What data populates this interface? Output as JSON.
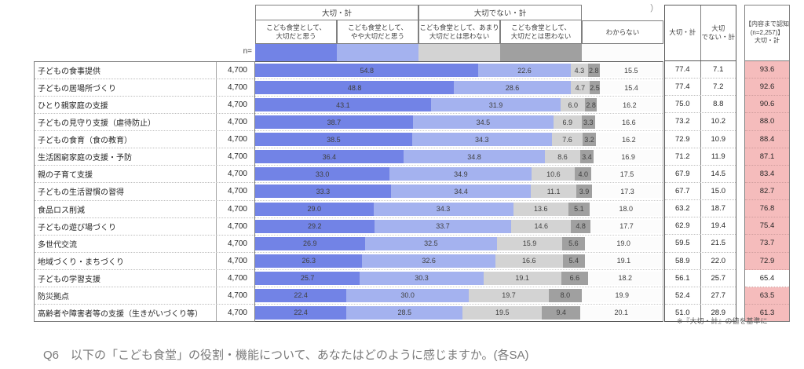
{
  "header": {
    "n_label": "n=",
    "percent_mark": "）",
    "group_important": "大切・計",
    "group_not_important": "大切でない・計",
    "columns": [
      {
        "label": "こども食堂として、\n大切だと思う"
      },
      {
        "label": "こども食堂として、\nやや大切だと思う"
      },
      {
        "label": "こども食堂として、あまり\n大切だとは思わない"
      },
      {
        "label": "こども食堂として、\n大切だとは思わない"
      },
      {
        "label": "わからない"
      }
    ]
  },
  "summary": {
    "important_header": "大切・計",
    "not_important_header": "大切\nでない・計",
    "aware_header": "【内容まで認知\n(n=2,257)】\n大切・計"
  },
  "footnote": "※『大切・計』の値を基準に",
  "question": "Q6　以下の「こども食堂」の役割・機能について、あなたはどのように感じますか。(各SA)",
  "colors": {
    "very_important": "#7283e6",
    "somewhat_important": "#a4b2ef",
    "not_very_important": "#d3d3d3",
    "not_important": "#a0a0a0",
    "dont_know": "#fcfcfc",
    "aware_pink": "#f5bcbc",
    "aware_white": "#ffffff"
  },
  "chart_data": {
    "type": "bar",
    "stacked": true,
    "orientation": "horizontal",
    "unit": "%",
    "xlim": [
      0,
      100
    ],
    "legend_position": "top",
    "series_names": [
      "こども食堂として、大切だと思う",
      "こども食堂として、やや大切だと思う",
      "こども食堂として、あまり大切だとは思わない",
      "こども食堂として、大切だとは思わない",
      "わからない"
    ],
    "rows": [
      {
        "label": "子どもの食事提供",
        "n": "4,700",
        "values": [
          54.8,
          22.6,
          4.3,
          2.8,
          15.5
        ],
        "important_total": 77.4,
        "not_important_total": 7.1,
        "aware_important": 93.6,
        "aware_pink": true
      },
      {
        "label": "子どもの居場所づくり",
        "n": "4,700",
        "values": [
          48.8,
          28.6,
          4.7,
          2.5,
          15.4
        ],
        "important_total": 77.4,
        "not_important_total": 7.2,
        "aware_important": 92.6,
        "aware_pink": true
      },
      {
        "label": "ひとり親家庭の支援",
        "n": "4,700",
        "values": [
          43.1,
          31.9,
          6.0,
          2.8,
          16.2
        ],
        "important_total": 75.0,
        "not_important_total": 8.8,
        "aware_important": 90.6,
        "aware_pink": true
      },
      {
        "label": "子どもの見守り支援（虐待防止）",
        "n": "4,700",
        "values": [
          38.7,
          34.5,
          6.9,
          3.3,
          16.6
        ],
        "important_total": 73.2,
        "not_important_total": 10.2,
        "aware_important": 88.0,
        "aware_pink": true
      },
      {
        "label": "子どもの食育（食の教育）",
        "n": "4,700",
        "values": [
          38.5,
          34.3,
          7.6,
          3.2,
          16.2
        ],
        "important_total": 72.9,
        "not_important_total": 10.9,
        "aware_important": 88.4,
        "aware_pink": true
      },
      {
        "label": "生活困窮家庭の支援・予防",
        "n": "4,700",
        "values": [
          36.4,
          34.8,
          8.6,
          3.4,
          16.9
        ],
        "important_total": 71.2,
        "not_important_total": 11.9,
        "aware_important": 87.1,
        "aware_pink": true
      },
      {
        "label": "親の子育て支援",
        "n": "4,700",
        "values": [
          33.0,
          34.9,
          10.6,
          4.0,
          17.5
        ],
        "important_total": 67.9,
        "not_important_total": 14.5,
        "aware_important": 83.4,
        "aware_pink": true
      },
      {
        "label": "子どもの生活習慣の習得",
        "n": "4,700",
        "values": [
          33.3,
          34.4,
          11.1,
          3.9,
          17.3
        ],
        "important_total": 67.7,
        "not_important_total": 15.0,
        "aware_important": 82.7,
        "aware_pink": true
      },
      {
        "label": "食品ロス削減",
        "n": "4,700",
        "values": [
          29.0,
          34.3,
          13.6,
          5.1,
          18.0
        ],
        "important_total": 63.2,
        "not_important_total": 18.7,
        "aware_important": 76.8,
        "aware_pink": true
      },
      {
        "label": "子どもの遊び場づくり",
        "n": "4,700",
        "values": [
          29.2,
          33.7,
          14.6,
          4.8,
          17.7
        ],
        "important_total": 62.9,
        "not_important_total": 19.4,
        "aware_important": 75.4,
        "aware_pink": true
      },
      {
        "label": "多世代交流",
        "n": "4,700",
        "values": [
          26.9,
          32.5,
          15.9,
          5.6,
          19.0
        ],
        "important_total": 59.5,
        "not_important_total": 21.5,
        "aware_important": 73.7,
        "aware_pink": true
      },
      {
        "label": "地域づくり・まちづくり",
        "n": "4,700",
        "values": [
          26.3,
          32.6,
          16.6,
          5.4,
          19.1
        ],
        "important_total": 58.9,
        "not_important_total": 22.0,
        "aware_important": 72.9,
        "aware_pink": true
      },
      {
        "label": "子どもの学習支援",
        "n": "4,700",
        "values": [
          25.7,
          30.3,
          19.1,
          6.6,
          18.2
        ],
        "important_total": 56.1,
        "not_important_total": 25.7,
        "aware_important": 65.4,
        "aware_pink": false
      },
      {
        "label": "防災拠点",
        "n": "4,700",
        "values": [
          22.4,
          30.0,
          19.7,
          8.0,
          19.9
        ],
        "important_total": 52.4,
        "not_important_total": 27.7,
        "aware_important": 63.5,
        "aware_pink": true
      },
      {
        "label": "高齢者や障害者等の支援（生きがいづくり等）",
        "n": "4,700",
        "values": [
          22.4,
          28.5,
          19.5,
          9.4,
          20.1
        ],
        "important_total": 51.0,
        "not_important_total": 28.9,
        "aware_important": 61.3,
        "aware_pink": true
      }
    ]
  }
}
